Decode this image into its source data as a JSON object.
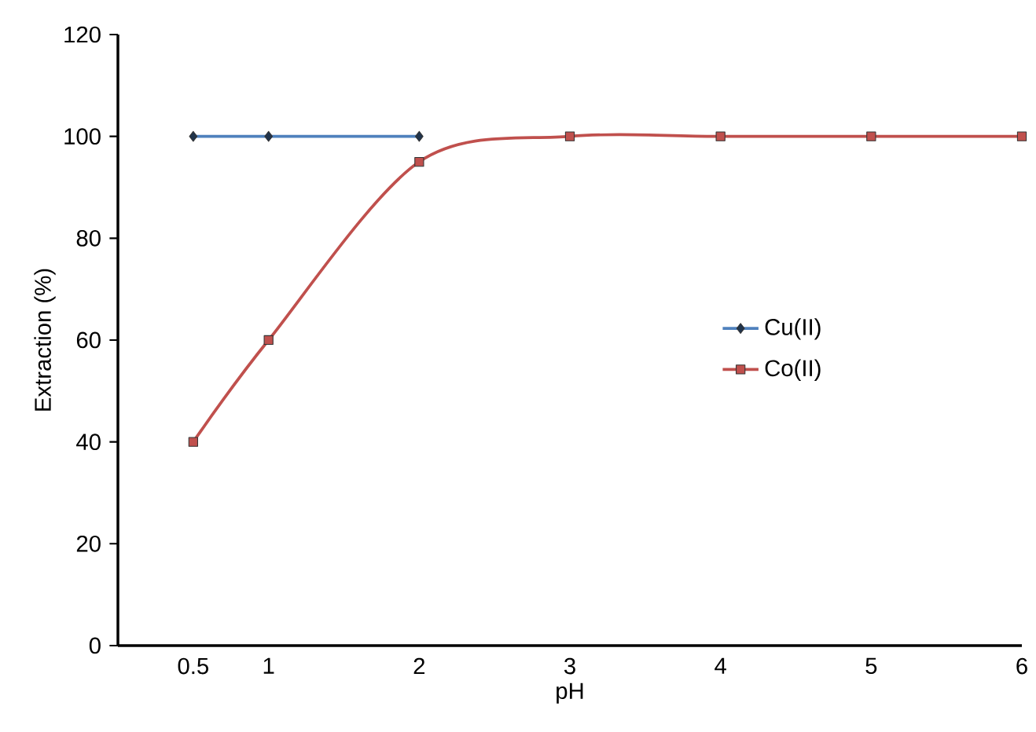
{
  "chart_data": {
    "type": "line",
    "xlabel": "pH",
    "ylabel": "Extraction (%)",
    "x": [
      0.5,
      1,
      2,
      3,
      4,
      5,
      6
    ],
    "series": [
      {
        "name": "Cu(II)",
        "color": "#4f81bd",
        "marker": "diamond",
        "values": [
          100,
          100,
          100,
          null,
          null,
          null,
          null
        ]
      },
      {
        "name": "Co(II)",
        "color": "#c0504d",
        "marker": "square",
        "values": [
          40,
          60,
          95,
          100,
          100,
          100,
          100
        ]
      }
    ],
    "xlim": [
      0,
      6
    ],
    "xticks": [
      0.5,
      1,
      2,
      3,
      4,
      5,
      6
    ],
    "ylim": [
      0,
      120
    ],
    "yticks": [
      0,
      20,
      40,
      60,
      80,
      100,
      120
    ],
    "legend": "right",
    "grid": false
  }
}
